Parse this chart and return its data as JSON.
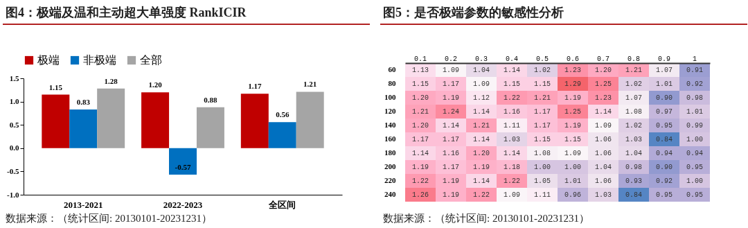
{
  "chart_data": [
    {
      "type": "bar",
      "title": "图4：极端及温和主动超大单强度 RankICIR",
      "categories": [
        "2013-2021",
        "2022-2023",
        "全区间"
      ],
      "series": [
        {
          "name": "极端",
          "color": "#c00000",
          "values": [
            1.15,
            1.2,
            1.17
          ],
          "value_labels": [
            "1.15",
            "1.20",
            "1.17"
          ]
        },
        {
          "name": "非极端",
          "color": "#0070c0",
          "values": [
            0.83,
            -0.57,
            0.56
          ],
          "value_labels": [
            "0.83",
            "-0.57",
            "0.56"
          ]
        },
        {
          "name": "全部",
          "color": "#a5a5a5",
          "values": [
            1.28,
            0.88,
            1.21
          ],
          "value_labels": [
            "1.28",
            "0.88",
            "1.21"
          ]
        }
      ],
      "ylim": [
        -1,
        1.5
      ],
      "yticks": [
        {
          "value": -1,
          "label": "-1.0"
        },
        -0.5,
        {
          "value": 0,
          "label": "0.0"
        },
        0.5,
        {
          "value": 1,
          "label": "1.0"
        },
        1.5
      ],
      "legend": "top",
      "annotations": [
        "数据来源：（统计区间: 20130101-20231231）"
      ]
    },
    {
      "type": "heatmap",
      "title": "图5：是否极端参数的敏感性分析",
      "categories": [
        "0.1",
        "0.2",
        "0.3",
        "0.4",
        "0.5",
        "0.6",
        "0.7",
        "0.8",
        "0.9",
        "1"
      ],
      "y_categories": [
        "60",
        "80",
        "100",
        "120",
        "140",
        "160",
        "180",
        "200",
        "220",
        "240"
      ],
      "cells": [
        [
          1.13,
          1.09,
          1.04,
          1.14,
          1.02,
          1.23,
          1.2,
          1.21,
          1.07,
          0.91
        ],
        [
          1.15,
          1.17,
          1.09,
          1.15,
          1.15,
          1.29,
          1.25,
          1.02,
          1.01,
          0.92
        ],
        [
          1.2,
          1.19,
          1.12,
          1.22,
          1.21,
          1.19,
          1.23,
          1.07,
          0.9,
          0.98
        ],
        [
          1.21,
          1.24,
          1.14,
          1.16,
          1.17,
          1.25,
          1.14,
          1.08,
          0.97,
          1.01
        ],
        [
          1.2,
          1.14,
          1.21,
          1.11,
          1.17,
          1.19,
          1.09,
          1.02,
          0.95,
          0.99
        ],
        [
          1.17,
          1.17,
          1.14,
          1.03,
          1.15,
          1.15,
          1.06,
          1.03,
          0.84,
          1.0
        ],
        [
          1.14,
          1.16,
          1.2,
          1.14,
          1.08,
          1.09,
          1.06,
          1.04,
          0.94,
          0.94
        ],
        [
          1.19,
          1.17,
          1.19,
          1.18,
          1.0,
          1.0,
          1.04,
          0.98,
          0.9,
          0.95
        ],
        [
          1.22,
          1.19,
          1.14,
          1.22,
          1.05,
          1.01,
          1.06,
          0.93,
          0.92,
          1.0
        ],
        [
          1.26,
          1.19,
          1.22,
          1.09,
          1.11,
          0.96,
          1.03,
          0.84,
          0.95,
          0.95
        ]
      ],
      "cell_labels": [
        [
          "1.13",
          "1.09",
          "1.04",
          "1.14",
          "1.02",
          "1.23",
          "1.20",
          "1.21",
          "1.07",
          "0.91"
        ],
        [
          "1.15",
          "1.17",
          "1.09",
          "1.15",
          "1.15",
          "1.29",
          "1.25",
          "1.02",
          "1.01",
          "0.92"
        ],
        [
          "1.20",
          "1.19",
          "1.12",
          "1.22",
          "1.21",
          "1.19",
          "1.23",
          "1.07",
          "0.90",
          "0.98"
        ],
        [
          "1.21",
          "1.24",
          "1.14",
          "1.16",
          "1.17",
          "1.25",
          "1.14",
          "1.08",
          "0.97",
          "1.01"
        ],
        [
          "1.20",
          "1.14",
          "1.21",
          "1.11",
          "1.17",
          "1.19",
          "1.09",
          "1.02",
          "0.95",
          "0.99"
        ],
        [
          "1.17",
          "1.17",
          "1.14",
          "1.03",
          "1.15",
          "1.15",
          "1.06",
          "1.03",
          "0.84",
          "1.00"
        ],
        [
          "1.14",
          "1.16",
          "1.20",
          "1.14",
          "1.08",
          "1.09",
          "1.06",
          "1.04",
          "0.94",
          "0.94"
        ],
        [
          "1.19",
          "1.17",
          "1.19",
          "1.18",
          "1.00",
          "1.00",
          "1.04",
          "0.98",
          "0.90",
          "0.95"
        ],
        [
          "1.22",
          "1.19",
          "1.14",
          "1.22",
          "1.05",
          "1.01",
          "1.06",
          "0.93",
          "0.92",
          "1.00"
        ],
        [
          "1.26",
          "1.19",
          "1.22",
          "1.09",
          "1.11",
          "0.96",
          "1.03",
          "0.84",
          "0.95",
          "0.95"
        ]
      ],
      "annotations": [
        "数据来源：（统计区间: 20130101-20231231）"
      ]
    }
  ]
}
